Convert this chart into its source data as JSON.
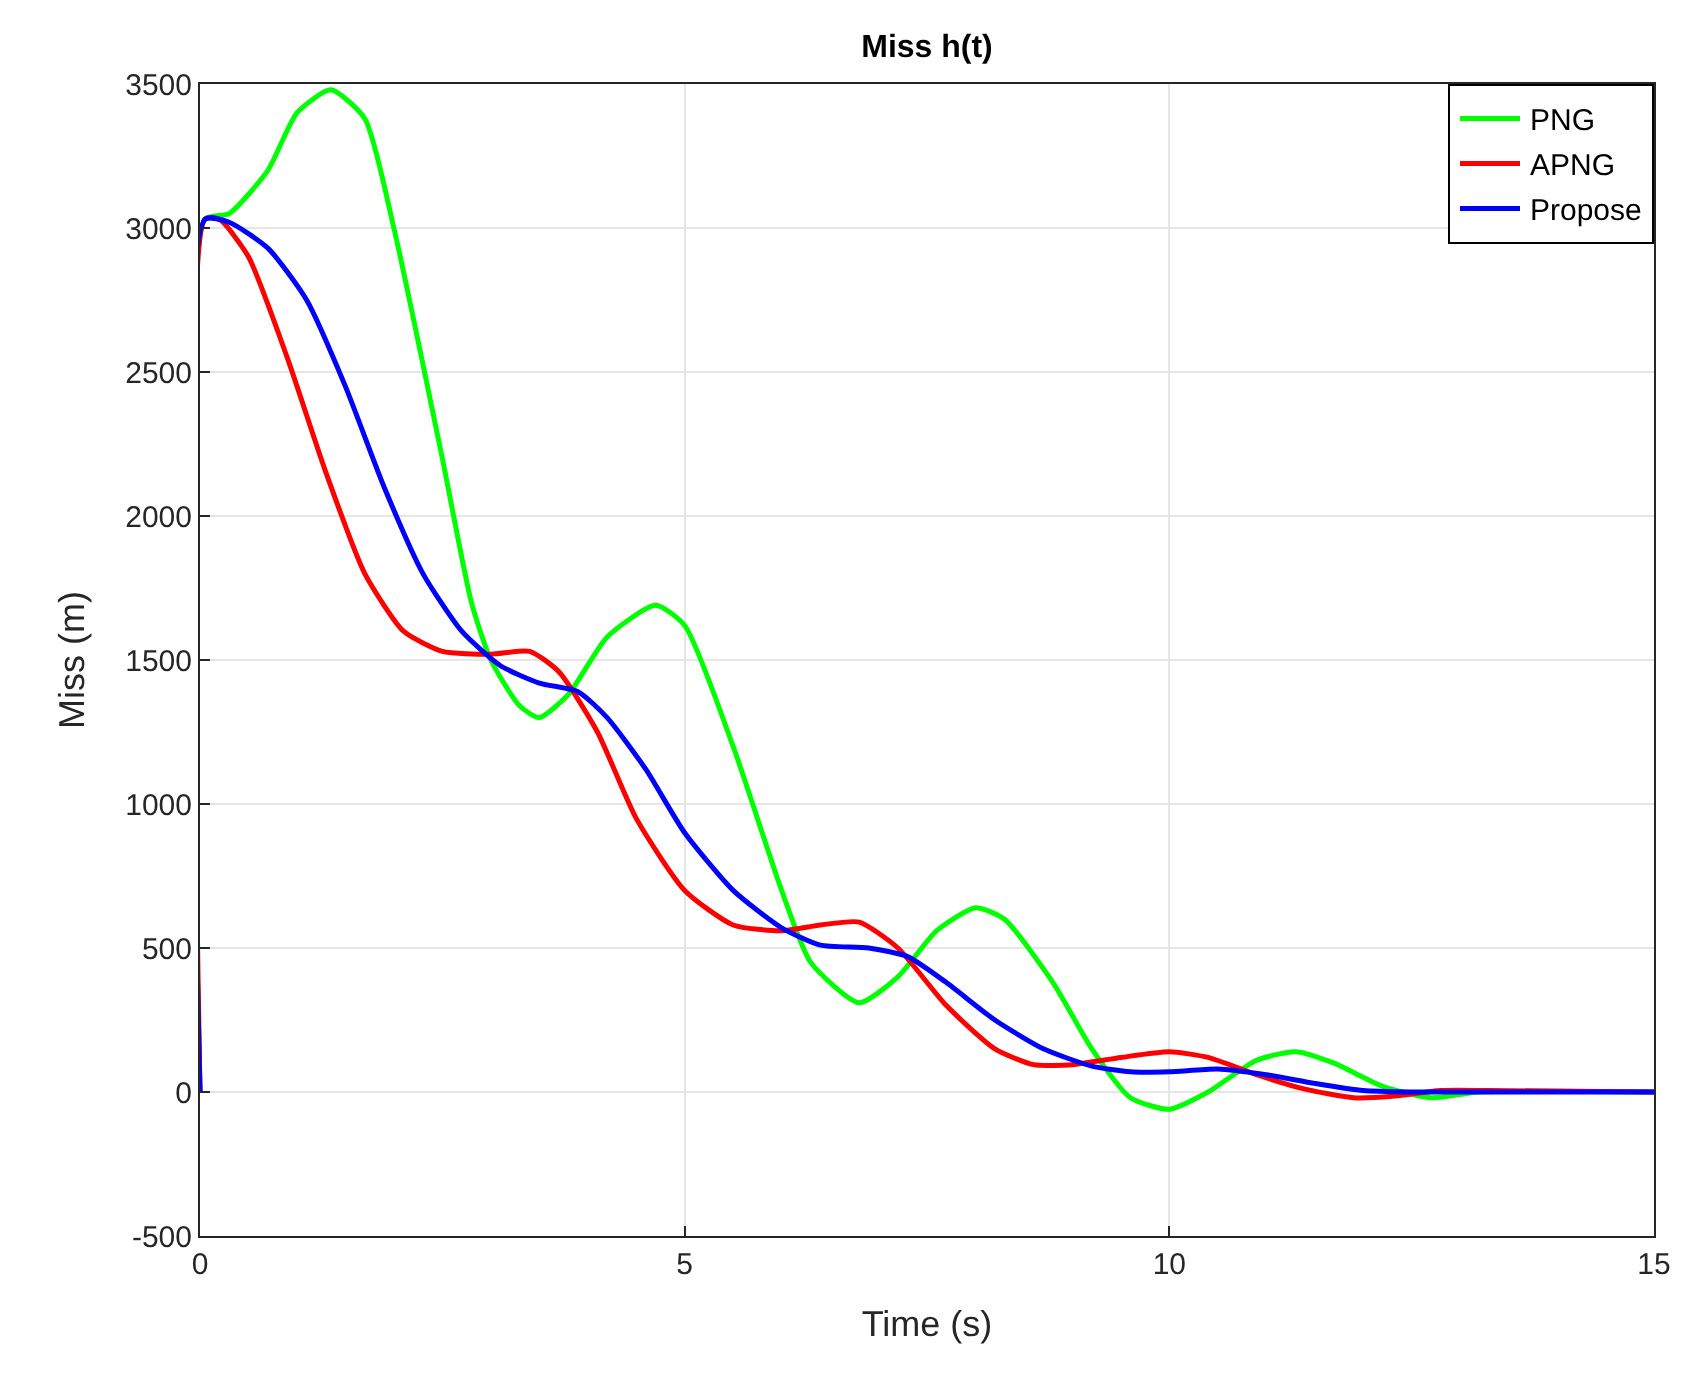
{
  "chart_data": {
    "type": "line",
    "title": "Miss h(t)",
    "xlabel": "Time (s)",
    "ylabel": "Miss (m)",
    "xlim": [
      0,
      15
    ],
    "xticks": [
      0,
      5,
      10,
      15
    ],
    "ylim": [
      -500,
      3500
    ],
    "yticks": [
      -500,
      0,
      500,
      1000,
      1500,
      2000,
      2500,
      3000,
      3500
    ],
    "grid": true,
    "legend": "top right",
    "line_style": "solid",
    "series": [
      {
        "name": "PNG",
        "color": "#00ff00",
        "x": [
          0,
          0.05,
          0.3,
          0.7,
          1.0,
          1.35,
          1.7,
          2.0,
          2.5,
          2.8,
          3.0,
          3.3,
          3.5,
          3.8,
          4.2,
          4.7,
          5.0,
          5.5,
          6.0,
          6.3,
          6.8,
          7.2,
          7.6,
          8.0,
          8.3,
          8.8,
          9.2,
          9.6,
          10.0,
          10.4,
          10.9,
          11.3,
          11.7,
          12.2,
          12.7,
          13.2,
          15
        ],
        "values": [
          0,
          3030,
          3050,
          3200,
          3400,
          3480,
          3380,
          3000,
          2200,
          1700,
          1500,
          1340,
          1300,
          1380,
          1580,
          1690,
          1620,
          1200,
          700,
          450,
          310,
          400,
          560,
          640,
          600,
          380,
          150,
          -20,
          -60,
          0,
          110,
          140,
          100,
          20,
          -20,
          0,
          0
        ]
      },
      {
        "name": "APNG",
        "color": "#ff0000",
        "x": [
          0,
          0.05,
          0.2,
          0.5,
          0.9,
          1.3,
          1.7,
          2.1,
          2.5,
          3.0,
          3.4,
          3.7,
          4.1,
          4.5,
          5.0,
          5.5,
          6.0,
          6.4,
          6.8,
          7.2,
          7.7,
          8.2,
          8.6,
          9.0,
          9.5,
          10.0,
          10.4,
          10.9,
          11.4,
          11.9,
          12.3,
          12.8,
          13.3,
          15
        ],
        "values": [
          0,
          3030,
          3030,
          2900,
          2550,
          2150,
          1800,
          1600,
          1530,
          1520,
          1530,
          1460,
          1250,
          950,
          700,
          580,
          560,
          580,
          590,
          500,
          300,
          150,
          95,
          95,
          120,
          140,
          120,
          60,
          10,
          -20,
          -15,
          5,
          5,
          0
        ]
      },
      {
        "name": "Propose",
        "color": "#0000ff",
        "x": [
          0,
          0.05,
          0.3,
          0.7,
          1.1,
          1.5,
          1.9,
          2.3,
          2.7,
          3.1,
          3.5,
          3.9,
          4.2,
          4.6,
          5.0,
          5.5,
          6.0,
          6.4,
          6.9,
          7.3,
          7.7,
          8.2,
          8.7,
          9.2,
          9.6,
          10.0,
          10.5,
          11.0,
          11.5,
          12.0,
          12.5,
          15
        ],
        "values": [
          0,
          3030,
          3020,
          2930,
          2750,
          2450,
          2100,
          1800,
          1600,
          1480,
          1420,
          1390,
          1300,
          1120,
          900,
          700,
          570,
          510,
          500,
          470,
          380,
          250,
          150,
          90,
          70,
          70,
          80,
          60,
          30,
          5,
          0,
          0
        ]
      }
    ]
  }
}
